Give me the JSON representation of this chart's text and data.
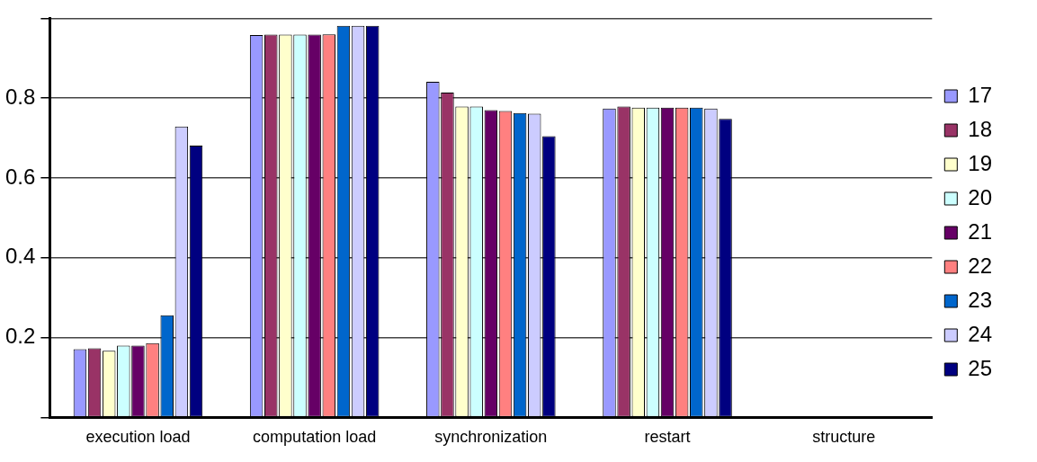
{
  "chart_data": {
    "type": "bar",
    "categories": [
      "execution load",
      "computation load",
      "synchronization",
      "restart",
      "structure"
    ],
    "series": [
      {
        "name": "17",
        "color": "#9999ff",
        "values": [
          0.171,
          0.958,
          0.841,
          0.774,
          0
        ]
      },
      {
        "name": "18",
        "color": "#993366",
        "values": [
          0.173,
          0.959,
          0.814,
          0.779,
          0
        ]
      },
      {
        "name": "19",
        "color": "#ffffcc",
        "values": [
          0.167,
          0.959,
          0.779,
          0.776,
          0
        ]
      },
      {
        "name": "20",
        "color": "#ccffff",
        "values": [
          0.18,
          0.959,
          0.779,
          0.776,
          0
        ]
      },
      {
        "name": "21",
        "color": "#660066",
        "values": [
          0.18,
          0.959,
          0.77,
          0.776,
          0
        ]
      },
      {
        "name": "22",
        "color": "#ff8080",
        "values": [
          0.186,
          0.96,
          0.768,
          0.776,
          0
        ]
      },
      {
        "name": "23",
        "color": "#0066cc",
        "values": [
          0.256,
          0.981,
          0.763,
          0.776,
          0
        ]
      },
      {
        "name": "24",
        "color": "#ccccff",
        "values": [
          0.729,
          0.981,
          0.761,
          0.774,
          0
        ]
      },
      {
        "name": "25",
        "color": "#000080",
        "values": [
          0.681,
          0.981,
          0.705,
          0.748,
          0
        ]
      }
    ],
    "ylim": [
      0,
      1
    ],
    "yticks": [
      {
        "value": 0,
        "label": null
      },
      0.2,
      0.4,
      0.6,
      0.8,
      {
        "value": 1,
        "label": null
      }
    ],
    "grid": "y",
    "legend": "right"
  }
}
